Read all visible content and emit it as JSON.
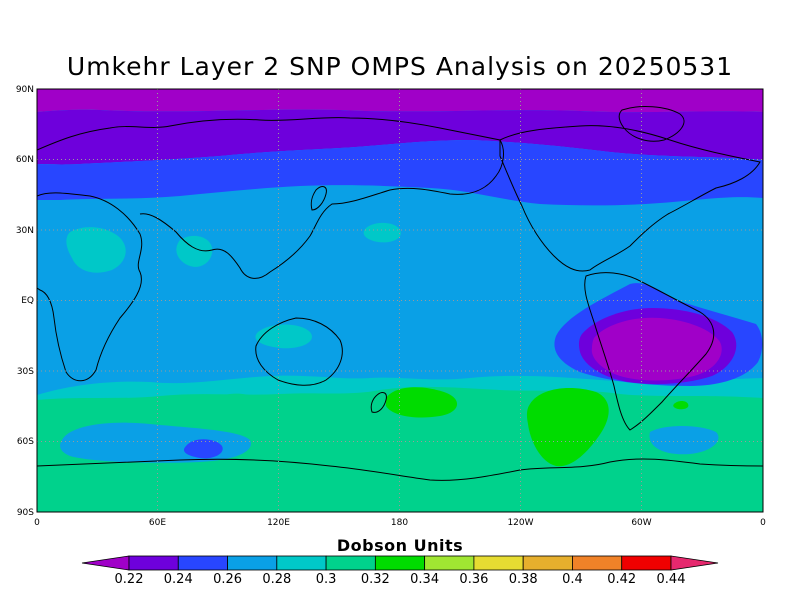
{
  "title": "Umkehr Layer 2 SNP OMPS Analysis on 20250531",
  "map": {
    "lat_labels": [
      "90N",
      "60N",
      "30N",
      "EQ",
      "30S",
      "60S",
      "90S"
    ],
    "lon_labels": [
      "0",
      "60E",
      "120E",
      "180",
      "120W",
      "60W",
      "0"
    ]
  },
  "colorbar": {
    "title": "Dobson Units",
    "labels": [
      "0.22",
      "0.24",
      "0.26",
      "0.28",
      "0.3",
      "0.32",
      "0.34",
      "0.36",
      "0.38",
      "0.4",
      "0.42",
      "0.44"
    ],
    "colors": [
      "#a000c8",
      "#6e00dc",
      "#2846ff",
      "#0aa0e6",
      "#00c8c8",
      "#00d28c",
      "#00dc00",
      "#a0e632",
      "#e6dc32",
      "#e6af2d",
      "#f08228",
      "#f00000",
      "#e6286e"
    ]
  },
  "chart_data": {
    "type": "heatmap",
    "title": "Umkehr Layer 2 SNP OMPS Analysis on 20250531",
    "units": "Dobson Units",
    "x_range": [
      0,
      360
    ],
    "y_range": [
      -90,
      90
    ],
    "contour_levels": [
      0.22,
      0.24,
      0.26,
      0.28,
      0.3,
      0.32,
      0.34,
      0.36,
      0.38,
      0.4,
      0.42,
      0.44
    ],
    "background_value": 0.27,
    "zonal_bands": [
      {
        "lat_from": 90,
        "lat_to": 75,
        "value": 0.23
      },
      {
        "lat_from": 75,
        "lat_to": 58,
        "value": 0.25
      },
      {
        "lat_from": 58,
        "lat_to": 40,
        "value": 0.265
      },
      {
        "lat_from": 40,
        "lat_to": -35,
        "value": 0.275
      },
      {
        "lat_from": -35,
        "lat_to": -45,
        "value": 0.29
      },
      {
        "lat_from": -45,
        "lat_to": -65,
        "value": 0.31
      },
      {
        "lat_from": -65,
        "lat_to": -75,
        "value": 0.3
      },
      {
        "lat_from": -75,
        "lat_to": -90,
        "value": 0.31
      }
    ],
    "features": [
      {
        "lon": 300,
        "lat": -20,
        "value": 0.23
      },
      {
        "lon": 255,
        "lat": -48,
        "value": 0.33
      },
      {
        "lon": 181,
        "lat": -45,
        "value": 0.33
      },
      {
        "lon": 83,
        "lat": -63,
        "value": 0.26
      },
      {
        "lon": 25,
        "lat": 23,
        "value": 0.29
      },
      {
        "lon": 57,
        "lat": 22,
        "value": 0.29
      },
      {
        "lon": 143,
        "lat": -15,
        "value": 0.29
      }
    ]
  }
}
